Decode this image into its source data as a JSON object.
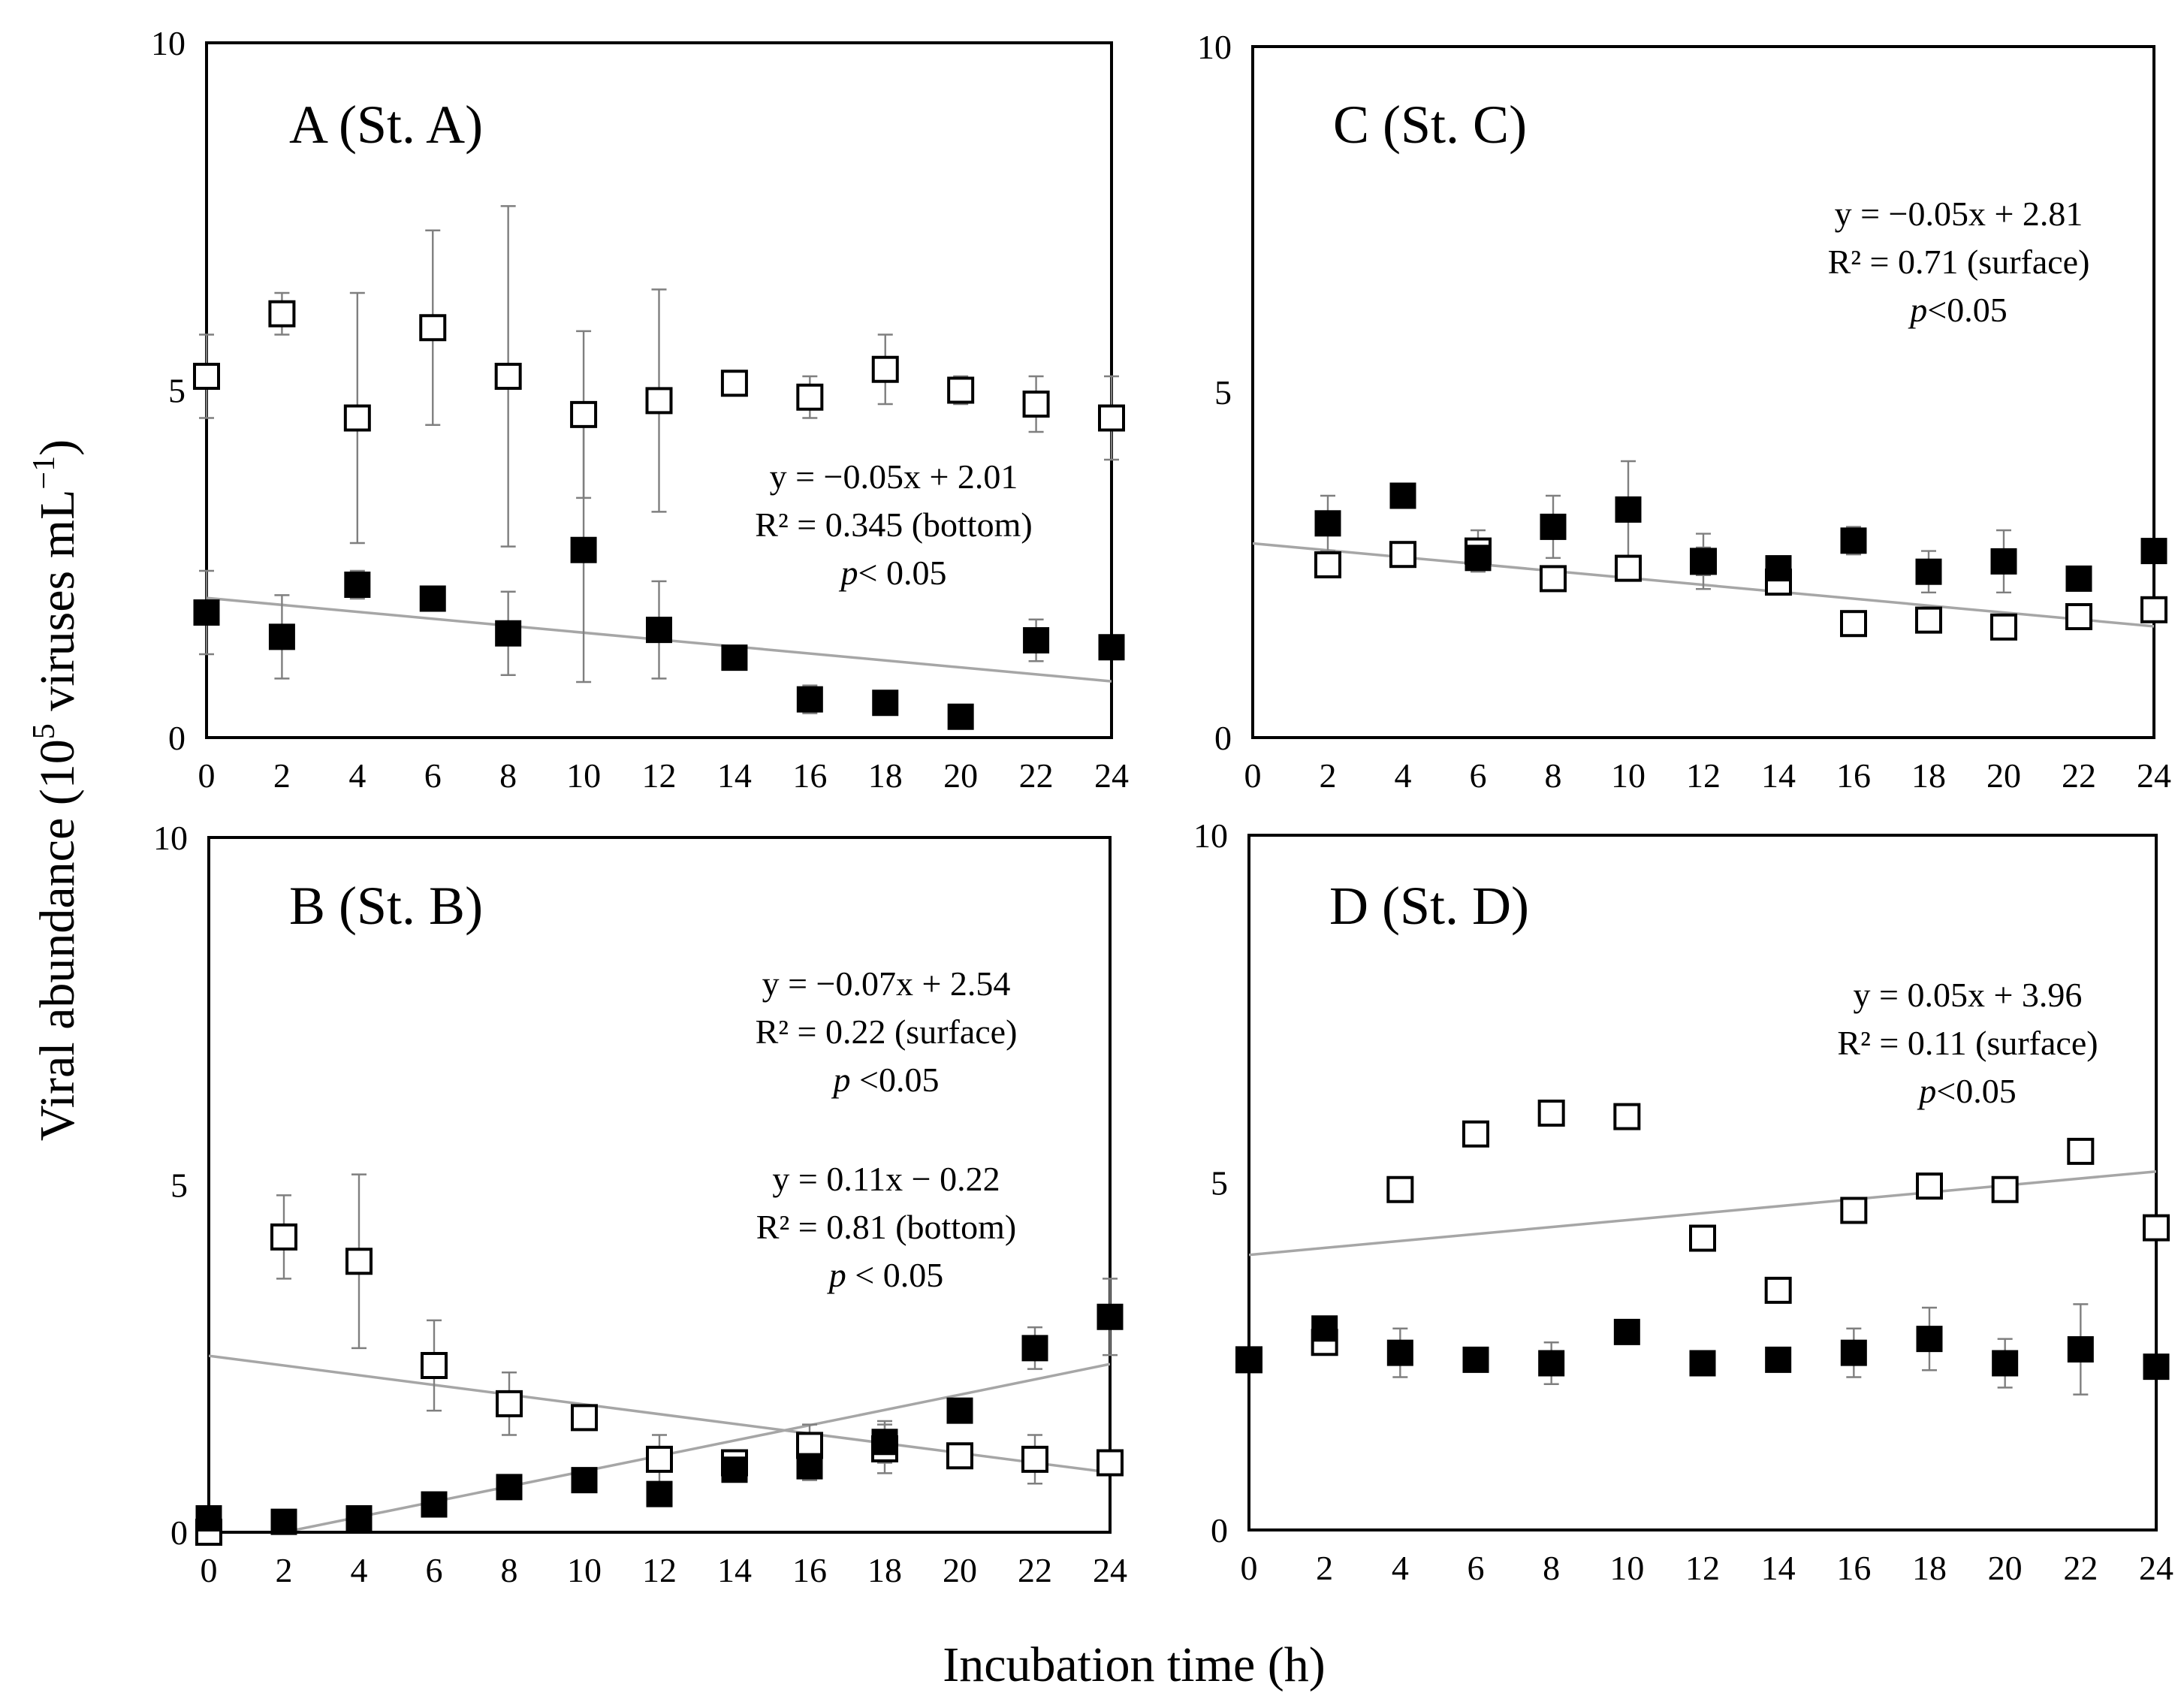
{
  "figure": {
    "ylabel_main": "Viral abundance (10",
    "ylabel_sup": "5",
    "ylabel_tail": " viruses mL",
    "ylabel_sup2": "−1",
    "ylabel_close": ")",
    "xlabel": "Incubation time (h)"
  },
  "chart_data": [
    {
      "id": "A",
      "type": "scatter",
      "title": "A (St. A)",
      "x": [
        0,
        2,
        4,
        6,
        8,
        10,
        12,
        14,
        16,
        18,
        20,
        22,
        24
      ],
      "xlim": [
        0,
        24
      ],
      "ylim": [
        0,
        10
      ],
      "xticks": [
        "0",
        "2",
        "4",
        "6",
        "8",
        "10",
        "12",
        "14",
        "16",
        "18",
        "20",
        "22",
        "24"
      ],
      "yticks": [
        "0",
        "5",
        "10"
      ],
      "series": [
        {
          "marker": "open-square",
          "values": [
            5.2,
            6.1,
            4.6,
            5.9,
            5.2,
            4.65,
            4.85,
            5.1,
            4.9,
            5.3,
            5.0,
            4.8,
            4.6
          ],
          "err": [
            0.6,
            0.3,
            1.8,
            1.4,
            2.45,
            1.2,
            1.6,
            0.1,
            0.3,
            0.5,
            0.2,
            0.4,
            0.6
          ]
        },
        {
          "marker": "filled-square",
          "values": [
            1.8,
            1.45,
            2.2,
            2.0,
            1.5,
            2.7,
            1.55,
            1.15,
            0.55,
            0.5,
            0.3,
            1.4,
            1.3
          ],
          "err": [
            0.6,
            0.6,
            0.2,
            0.1,
            0.6,
            1.9,
            0.7,
            0.1,
            0.2,
            0.1,
            0.05,
            0.3,
            0.1
          ]
        }
      ],
      "trendlines": [
        {
          "slope": -0.05,
          "intercept": 2.01
        }
      ],
      "annotations": [
        {
          "lines": [
            {
              "text": "y = −0.05x + 2.01"
            },
            {
              "text": "R² = 0.345 (bottom)"
            },
            {
              "italic": "p",
              "text": "< 0.05"
            }
          ]
        }
      ]
    },
    {
      "id": "C",
      "type": "scatter",
      "title": "C (St. C)",
      "x": [
        2,
        4,
        6,
        8,
        10,
        12,
        14,
        16,
        18,
        20,
        22,
        24
      ],
      "xlim": [
        0,
        24
      ],
      "ylim": [
        0,
        10
      ],
      "xticks": [
        "0",
        "2",
        "4",
        "6",
        "8",
        "10",
        "12",
        "14",
        "16",
        "18",
        "20",
        "22",
        "24"
      ],
      "yticks": [
        "0",
        "5",
        "10"
      ],
      "series": [
        {
          "marker": "open-square",
          "values": [
            2.5,
            2.65,
            2.7,
            2.3,
            2.45,
            2.55,
            2.25,
            1.65,
            1.7,
            1.6,
            1.75,
            1.85
          ],
          "err": [
            0,
            0,
            0.3,
            0,
            0,
            0.2,
            0,
            0,
            0,
            0,
            0,
            0
          ]
        },
        {
          "marker": "filled-square",
          "values": [
            3.1,
            3.5,
            2.6,
            3.05,
            3.3,
            2.55,
            2.45,
            2.85,
            2.4,
            2.55,
            2.3,
            2.7
          ],
          "err": [
            0.4,
            0.15,
            0.1,
            0.45,
            0.7,
            0.4,
            0.1,
            0.2,
            0.3,
            0.45,
            0.1,
            0.15
          ]
        }
      ],
      "trendlines": [
        {
          "slope": -0.05,
          "intercept": 2.81
        }
      ],
      "annotations": [
        {
          "lines": [
            {
              "text": "y = −0.05x + 2.81"
            },
            {
              "text": "R² = 0.71 (surface)"
            },
            {
              "italic": "p",
              "text": "<0.05"
            }
          ]
        }
      ]
    },
    {
      "id": "B",
      "type": "scatter",
      "title": "B (St. B)",
      "x": [
        0,
        2,
        4,
        6,
        8,
        10,
        12,
        14,
        16,
        18,
        20,
        22,
        24
      ],
      "xlim": [
        0,
        24
      ],
      "ylim": [
        0,
        10
      ],
      "xticks": [
        "0",
        "2",
        "4",
        "6",
        "8",
        "10",
        "12",
        "14",
        "16",
        "18",
        "20",
        "22",
        "24"
      ],
      "yticks": [
        "0",
        "5",
        "10"
      ],
      "series": [
        {
          "marker": "open-square",
          "values": [
            0.0,
            4.25,
            3.9,
            2.4,
            1.85,
            1.65,
            1.05,
            1.0,
            1.25,
            1.2,
            1.1,
            1.05,
            1.0
          ],
          "err": [
            0,
            0.6,
            1.25,
            0.65,
            0.45,
            0.1,
            0.35,
            0.1,
            0.3,
            0.35,
            0.1,
            0.35,
            0
          ]
        },
        {
          "marker": "filled-square",
          "values": [
            0.2,
            0.15,
            0.2,
            0.4,
            0.65,
            0.75,
            0.55,
            0.9,
            0.95,
            1.3,
            1.75,
            2.65,
            3.1
          ],
          "err": [
            0,
            0,
            0,
            0,
            0,
            0,
            0,
            0.15,
            0.2,
            0.3,
            0.15,
            0.3,
            0.55
          ]
        }
      ],
      "trendlines": [
        {
          "slope": -0.07,
          "intercept": 2.54
        },
        {
          "slope": 0.11,
          "intercept": -0.22
        }
      ],
      "annotations": [
        {
          "lines": [
            {
              "text": "y = −0.07x + 2.54"
            },
            {
              "text": "R² = 0.22 (surface)"
            },
            {
              "italic": "p",
              "text": " <0.05"
            }
          ]
        },
        {
          "lines": [
            {
              "text": "y = 0.11x − 0.22"
            },
            {
              "text": "R² = 0.81 (bottom)"
            },
            {
              "italic": "p",
              "text": " < 0.05"
            }
          ]
        }
      ]
    },
    {
      "id": "D",
      "type": "scatter",
      "title": "D (St. D)",
      "x": [
        0,
        2,
        4,
        6,
        8,
        10,
        12,
        14,
        16,
        18,
        20,
        22,
        24
      ],
      "xlim": [
        0,
        24
      ],
      "ylim": [
        0,
        10
      ],
      "xticks": [
        "0",
        "2",
        "4",
        "6",
        "8",
        "10",
        "12",
        "14",
        "16",
        "18",
        "20",
        "22",
        "24"
      ],
      "yticks": [
        "0",
        "5",
        "10"
      ],
      "series": [
        {
          "marker": "open-square",
          "values": [
            2.45,
            2.7,
            4.9,
            5.7,
            6.0,
            5.95,
            4.2,
            3.45,
            4.6,
            4.95,
            4.9,
            5.45,
            4.35
          ],
          "err": [
            0,
            0,
            0,
            0,
            0,
            0,
            0,
            0,
            0,
            0,
            0,
            0,
            0
          ]
        },
        {
          "marker": "filled-square",
          "values": [
            2.45,
            2.9,
            2.55,
            2.45,
            2.4,
            2.85,
            2.4,
            2.45,
            2.55,
            2.75,
            2.4,
            2.6,
            2.35
          ],
          "err": [
            0,
            0.15,
            0.35,
            0,
            0.3,
            0.1,
            0,
            0.1,
            0.35,
            0.45,
            0.35,
            0.65,
            0
          ]
        }
      ],
      "trendlines": [
        {
          "slope": 0.05,
          "intercept": 3.96
        }
      ],
      "annotations": [
        {
          "lines": [
            {
              "text": "y = 0.05x + 3.96"
            },
            {
              "text": "R² = 0.11 (surface)"
            },
            {
              "italic": "p",
              "text": "<0.05"
            }
          ]
        }
      ]
    }
  ]
}
